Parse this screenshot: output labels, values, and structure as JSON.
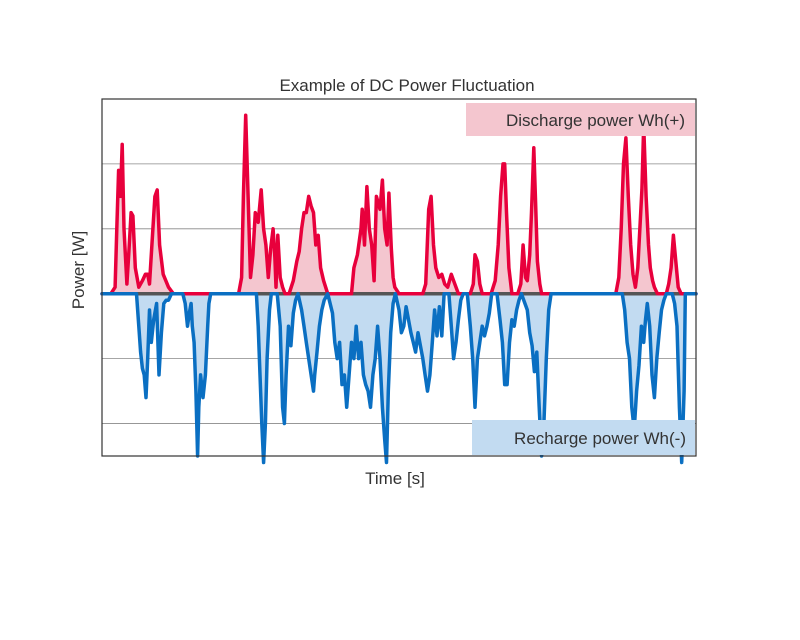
{
  "chart_data": {
    "type": "line",
    "title": "Example of DC Power Fluctuation",
    "xlabel": "Time [s]",
    "ylabel": "Power [W]",
    "ylim": [
      -5,
      6
    ],
    "grid": true,
    "y_gridlines": [
      -4,
      -2,
      2,
      4
    ],
    "x_range": [
      0,
      100
    ],
    "series": [
      {
        "key": "discharge",
        "label": "Discharge power Wh(+)",
        "color": "#e8003c",
        "fill": "#f4c6cf",
        "points": [
          [
            0,
            0
          ],
          [
            1.5,
            0
          ],
          [
            2.2,
            0.2
          ],
          [
            2.5,
            2
          ],
          [
            2.8,
            3.8
          ],
          [
            3.1,
            3
          ],
          [
            3.4,
            4.6
          ],
          [
            3.7,
            2
          ],
          [
            4.2,
            0.3
          ],
          [
            4.5,
            1.2
          ],
          [
            4.9,
            2.5
          ],
          [
            5.2,
            2.4
          ],
          [
            5.6,
            0.8
          ],
          [
            6.2,
            0.2
          ],
          [
            6.8,
            0.4
          ],
          [
            7.3,
            0.6
          ],
          [
            7.7,
            0.6
          ],
          [
            8,
            0.3
          ],
          [
            8.4,
            1.5
          ],
          [
            8.9,
            3
          ],
          [
            9.3,
            3.2
          ],
          [
            9.7,
            1.5
          ],
          [
            10.3,
            0.6
          ],
          [
            11.2,
            0.2
          ],
          [
            12,
            0
          ],
          [
            23,
            0
          ],
          [
            23.5,
            0.5
          ],
          [
            23.8,
            3
          ],
          [
            24.2,
            5.5
          ],
          [
            24.6,
            3
          ],
          [
            25,
            0.5
          ],
          [
            25.4,
            1.2
          ],
          [
            25.8,
            2.5
          ],
          [
            26.3,
            2.2
          ],
          [
            26.8,
            3.2
          ],
          [
            27.2,
            2
          ],
          [
            27.6,
            1.5
          ],
          [
            28,
            0.5
          ],
          [
            28.4,
            1.4
          ],
          [
            28.8,
            2
          ],
          [
            29.1,
            1.1
          ],
          [
            29.3,
            0.2
          ],
          [
            29.6,
            1.8
          ],
          [
            30,
            0.5
          ],
          [
            30.4,
            0.2
          ],
          [
            30.8,
            0
          ],
          [
            31.5,
            0
          ],
          [
            32.2,
            0.4
          ],
          [
            32.8,
            1
          ],
          [
            33.2,
            1.3
          ],
          [
            33.6,
            2
          ],
          [
            34,
            2.5
          ],
          [
            34.4,
            2.5
          ],
          [
            34.8,
            3
          ],
          [
            35.2,
            2.7
          ],
          [
            35.6,
            2.5
          ],
          [
            36,
            1.5
          ],
          [
            36.4,
            1.8
          ],
          [
            36.8,
            0.8
          ],
          [
            37.3,
            0.4
          ],
          [
            38,
            0
          ],
          [
            42,
            0
          ],
          [
            42.4,
            0.8
          ],
          [
            43,
            1.2
          ],
          [
            43.6,
            2
          ],
          [
            43.8,
            2.6
          ],
          [
            44.2,
            1.5
          ],
          [
            44.6,
            3.3
          ],
          [
            45,
            2
          ],
          [
            45.4,
            1.5
          ],
          [
            45.8,
            0.4
          ],
          [
            46.2,
            3
          ],
          [
            46.8,
            2.6
          ],
          [
            47.2,
            3.5
          ],
          [
            47.6,
            2
          ],
          [
            48,
            1.5
          ],
          [
            48.3,
            3.1
          ],
          [
            48.7,
            1.4
          ],
          [
            49,
            0.5
          ],
          [
            49.3,
            0.2
          ],
          [
            50,
            0
          ],
          [
            54,
            0
          ],
          [
            54.5,
            0.3
          ],
          [
            55,
            2.6
          ],
          [
            55.4,
            3
          ],
          [
            55.8,
            1.5
          ],
          [
            56.2,
            0.8
          ],
          [
            56.7,
            0.5
          ],
          [
            57.2,
            0.6
          ],
          [
            57.7,
            0.3
          ],
          [
            58.2,
            0.2
          ],
          [
            58.8,
            0.6
          ],
          [
            59.2,
            0.4
          ],
          [
            59.6,
            0.2
          ],
          [
            60,
            0
          ],
          [
            62,
            0
          ],
          [
            62.5,
            0.3
          ],
          [
            62.8,
            1.2
          ],
          [
            63.2,
            1
          ],
          [
            63.6,
            0.3
          ],
          [
            64,
            0
          ],
          [
            65.5,
            0
          ],
          [
            66.2,
            0.4
          ],
          [
            66.7,
            1.5
          ],
          [
            67.1,
            3
          ],
          [
            67.5,
            4
          ],
          [
            67.8,
            4
          ],
          [
            68.1,
            2.5
          ],
          [
            68.5,
            0.8
          ],
          [
            69,
            0
          ],
          [
            70,
            0
          ],
          [
            70.5,
            0.3
          ],
          [
            70.9,
            1.5
          ],
          [
            71.3,
            0.5
          ],
          [
            71.6,
            0.4
          ],
          [
            72,
            1.2
          ],
          [
            72.3,
            2.5
          ],
          [
            72.7,
            4.5
          ],
          [
            73,
            2.8
          ],
          [
            73.3,
            1
          ],
          [
            73.7,
            0.3
          ],
          [
            74,
            0
          ],
          [
            86.5,
            0
          ],
          [
            87,
            0.5
          ],
          [
            87.4,
            2
          ],
          [
            87.8,
            4
          ],
          [
            88.2,
            4.8
          ],
          [
            88.6,
            3
          ],
          [
            89,
            1.5
          ],
          [
            89.4,
            0.6
          ],
          [
            89.8,
            0.2
          ],
          [
            90.2,
            0.8
          ],
          [
            90.6,
            2.2
          ],
          [
            90.9,
            3.2
          ],
          [
            91.2,
            5.2
          ],
          [
            91.6,
            3
          ],
          [
            92,
            1.5
          ],
          [
            92.3,
            0.8
          ],
          [
            92.7,
            0.4
          ],
          [
            93,
            0.2
          ],
          [
            93.5,
            0
          ],
          [
            95,
            0
          ],
          [
            95.4,
            0.3
          ],
          [
            95.8,
            0.8
          ],
          [
            96.2,
            1.8
          ],
          [
            96.6,
            1
          ],
          [
            97,
            0.2
          ],
          [
            97.5,
            0
          ],
          [
            100,
            0
          ]
        ]
      },
      {
        "key": "recharge",
        "label": "Recharge power Wh(-)",
        "color": "#0a6fc2",
        "fill": "#c2dbf1",
        "points": [
          [
            0,
            0
          ],
          [
            5.8,
            0
          ],
          [
            6.2,
            -1
          ],
          [
            6.5,
            -1.8
          ],
          [
            6.8,
            -2.3
          ],
          [
            7.1,
            -2.5
          ],
          [
            7.4,
            -3.2
          ],
          [
            7.7,
            -2
          ],
          [
            8,
            -0.5
          ],
          [
            8.3,
            -1.5
          ],
          [
            8.7,
            -0.8
          ],
          [
            9.2,
            -0.3
          ],
          [
            9.6,
            -2.5
          ],
          [
            10,
            -1.2
          ],
          [
            10.4,
            -0.3
          ],
          [
            10.8,
            -0.2
          ],
          [
            11.2,
            -0.2
          ],
          [
            11.7,
            0
          ],
          [
            13.6,
            0
          ],
          [
            14,
            -0.3
          ],
          [
            14.4,
            -1
          ],
          [
            14.7,
            -0.6
          ],
          [
            15,
            -0.3
          ],
          [
            15.2,
            -1
          ],
          [
            15.5,
            -1.5
          ],
          [
            15.8,
            -3
          ],
          [
            16.1,
            -5
          ],
          [
            16.3,
            -3.5
          ],
          [
            16.6,
            -2.5
          ],
          [
            17,
            -3.2
          ],
          [
            17.4,
            -2.5
          ],
          [
            17.8,
            -1
          ],
          [
            18,
            -0.3
          ],
          [
            18.3,
            0
          ],
          [
            26,
            0
          ],
          [
            26.3,
            -1
          ],
          [
            26.6,
            -2.5
          ],
          [
            26.9,
            -4
          ],
          [
            27.2,
            -5.2
          ],
          [
            27.5,
            -4
          ],
          [
            27.8,
            -2
          ],
          [
            28.2,
            -0.5
          ],
          [
            28.5,
            0
          ],
          [
            29.5,
            0
          ],
          [
            30,
            -1
          ],
          [
            30.4,
            -3.5
          ],
          [
            30.7,
            -4
          ],
          [
            31,
            -2.5
          ],
          [
            31.4,
            -1
          ],
          [
            31.8,
            -1.6
          ],
          [
            32.2,
            -0.6
          ],
          [
            32.6,
            -0.2
          ],
          [
            33,
            0
          ],
          [
            33.6,
            -0.5
          ],
          [
            34,
            -1
          ],
          [
            34.4,
            -1.5
          ],
          [
            34.8,
            -2
          ],
          [
            35.2,
            -2.5
          ],
          [
            35.6,
            -3
          ],
          [
            35.8,
            -2.5
          ],
          [
            36.2,
            -1.8
          ],
          [
            36.6,
            -1
          ],
          [
            37,
            -0.5
          ],
          [
            37.4,
            -0.2
          ],
          [
            38,
            0
          ],
          [
            38.8,
            -0.6
          ],
          [
            39.2,
            -1.5
          ],
          [
            39.6,
            -2
          ],
          [
            40,
            -1.5
          ],
          [
            40.4,
            -2.8
          ],
          [
            40.8,
            -2.5
          ],
          [
            41.2,
            -3.5
          ],
          [
            41.6,
            -2.5
          ],
          [
            42,
            -1.5
          ],
          [
            42.4,
            -2
          ],
          [
            42.8,
            -1
          ],
          [
            43.2,
            -2
          ],
          [
            43.6,
            -1.5
          ],
          [
            44,
            -2.5
          ],
          [
            44.4,
            -2.8
          ],
          [
            44.8,
            -3
          ],
          [
            45.2,
            -3.5
          ],
          [
            45.6,
            -2.5
          ],
          [
            46,
            -2
          ],
          [
            46.4,
            -1
          ],
          [
            46.8,
            -2
          ],
          [
            47.2,
            -3.5
          ],
          [
            47.6,
            -4.5
          ],
          [
            47.9,
            -5.2
          ],
          [
            48.2,
            -3
          ],
          [
            48.6,
            -1.2
          ],
          [
            49,
            -0.3
          ],
          [
            49.4,
            0
          ],
          [
            50,
            -0.5
          ],
          [
            50.4,
            -1.2
          ],
          [
            50.8,
            -1
          ],
          [
            51.2,
            -0.4
          ],
          [
            51.6,
            -0.8
          ],
          [
            52,
            -1.2
          ],
          [
            52.4,
            -1.5
          ],
          [
            52.8,
            -1.8
          ],
          [
            53.2,
            -1.2
          ],
          [
            53.6,
            -1.6
          ],
          [
            54,
            -2
          ],
          [
            54.4,
            -2.5
          ],
          [
            54.8,
            -3
          ],
          [
            55.2,
            -2.5
          ],
          [
            55.6,
            -1.5
          ],
          [
            56,
            -0.5
          ],
          [
            56.4,
            -1.3
          ],
          [
            56.8,
            -0.4
          ],
          [
            57.2,
            -1.3
          ],
          [
            57.6,
            0
          ],
          [
            58.4,
            0
          ],
          [
            58.8,
            -1
          ],
          [
            59.2,
            -2
          ],
          [
            59.6,
            -1.5
          ],
          [
            60,
            -0.8
          ],
          [
            60.4,
            -0.2
          ],
          [
            60.8,
            0
          ],
          [
            61.5,
            0
          ],
          [
            62,
            -1
          ],
          [
            62.4,
            -2
          ],
          [
            62.8,
            -3.5
          ],
          [
            63.2,
            -2
          ],
          [
            63.6,
            -1.5
          ],
          [
            64,
            -1
          ],
          [
            64.4,
            -1.3
          ],
          [
            64.8,
            -1
          ],
          [
            65.2,
            -0.6
          ],
          [
            65.6,
            0
          ],
          [
            66.5,
            0
          ],
          [
            67,
            -0.8
          ],
          [
            67.4,
            -1.5
          ],
          [
            67.8,
            -2.8
          ],
          [
            68.2,
            -2.8
          ],
          [
            68.6,
            -1.5
          ],
          [
            69,
            -0.8
          ],
          [
            69.4,
            -1
          ],
          [
            69.8,
            -0.5
          ],
          [
            70.2,
            -0.2
          ],
          [
            70.6,
            0
          ],
          [
            71.6,
            -0.5
          ],
          [
            72,
            -1.2
          ],
          [
            72.4,
            -1.6
          ],
          [
            72.8,
            -2.4
          ],
          [
            73.2,
            -1.8
          ],
          [
            73.6,
            -3.5
          ],
          [
            74,
            -5
          ],
          [
            74.4,
            -4
          ],
          [
            74.8,
            -2
          ],
          [
            75.2,
            -0.5
          ],
          [
            75.6,
            0
          ],
          [
            87.6,
            0
          ],
          [
            88,
            -0.5
          ],
          [
            88.4,
            -1.5
          ],
          [
            88.8,
            -2
          ],
          [
            89.2,
            -3.5
          ],
          [
            89.6,
            -4.2
          ],
          [
            90,
            -3
          ],
          [
            90.4,
            -2.2
          ],
          [
            90.8,
            -1
          ],
          [
            91.2,
            -1.5
          ],
          [
            91.5,
            -0.8
          ],
          [
            91.8,
            -0.3
          ],
          [
            92.2,
            -1
          ],
          [
            92.6,
            -2.5
          ],
          [
            93,
            -3.2
          ],
          [
            93.4,
            -2
          ],
          [
            93.8,
            -1.2
          ],
          [
            94.2,
            -0.5
          ],
          [
            94.6,
            -0.2
          ],
          [
            95,
            0
          ],
          [
            96,
            0
          ],
          [
            96.4,
            -0.3
          ],
          [
            96.8,
            -1
          ],
          [
            97.2,
            -3.5
          ],
          [
            97.6,
            -5.2
          ],
          [
            98,
            -3
          ],
          [
            98.2,
            0
          ],
          [
            100,
            0
          ]
        ]
      }
    ]
  },
  "colors": {
    "baseline": "#555555",
    "grid": "#888888",
    "frame": "#333333"
  }
}
